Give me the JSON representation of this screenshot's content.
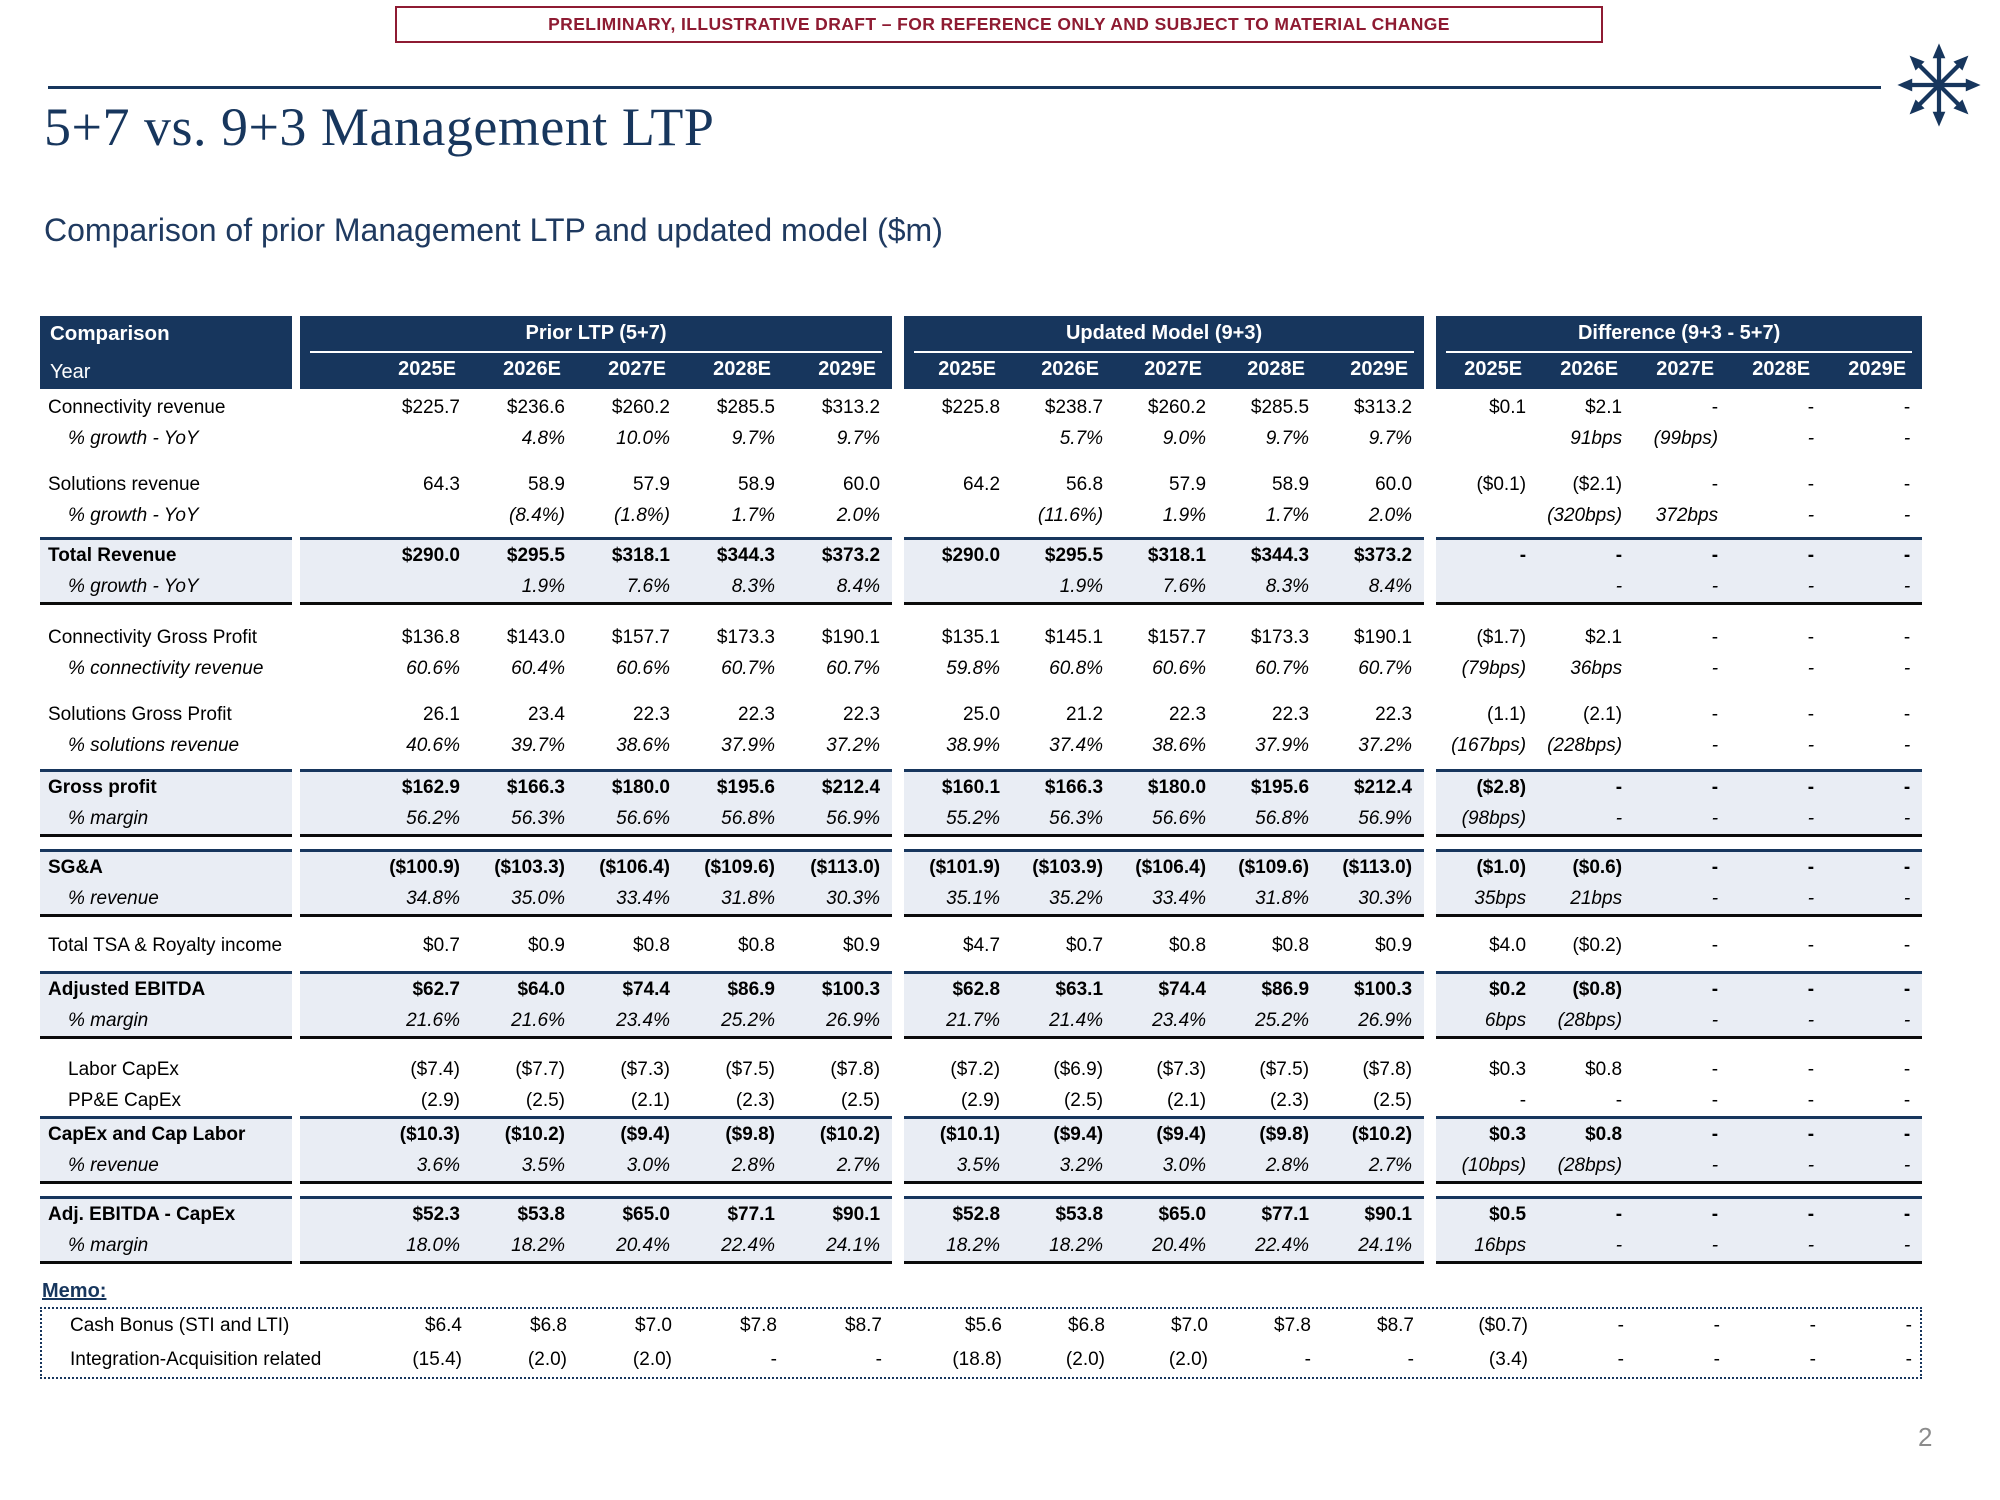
{
  "banner": {
    "text": "PRELIMINARY, ILLUSTRATIVE DRAFT – FOR REFERENCE ONLY AND SUBJECT TO MATERIAL CHANGE"
  },
  "header": {
    "title": "5+7 vs. 9+3 Management LTP",
    "subtitle": "Comparison of prior Management LTP and updated model ($m)"
  },
  "logo": {
    "icon": "arrows-starburst-logo"
  },
  "colors": {
    "navy": "#17365D",
    "maroon": "#8E1B32",
    "row_shade": "#E9EDF4",
    "page_number_gray": "#8C8C8C"
  },
  "page": {
    "number": "2"
  },
  "table": {
    "label_header": {
      "line1": "Comparison",
      "line2": "Year"
    },
    "groups": [
      {
        "key": "prior",
        "title": "Prior LTP (5+7)",
        "years": [
          "2025E",
          "2026E",
          "2027E",
          "2028E",
          "2029E"
        ]
      },
      {
        "key": "updated",
        "title": "Updated Model (9+3)",
        "years": [
          "2025E",
          "2026E",
          "2027E",
          "2028E",
          "2029E"
        ]
      },
      {
        "key": "diff",
        "title": "Difference (9+3 - 5+7)",
        "years": [
          "2025E",
          "2026E",
          "2027E",
          "2028E",
          "2029E"
        ]
      }
    ],
    "sections": [
      {
        "style": "plain",
        "rows": [
          {
            "label": "Connectivity revenue",
            "kind": "item",
            "prior": [
              "$225.7",
              "$236.6",
              "$260.2",
              "$285.5",
              "$313.2"
            ],
            "updated": [
              "$225.8",
              "$238.7",
              "$260.2",
              "$285.5",
              "$313.2"
            ],
            "diff": [
              "$0.1",
              "$2.1",
              "-",
              "-",
              "-"
            ]
          },
          {
            "label": "% growth - YoY",
            "kind": "sub",
            "prior": [
              "",
              "4.8%",
              "10.0%",
              "9.7%",
              "9.7%"
            ],
            "updated": [
              "",
              "5.7%",
              "9.0%",
              "9.7%",
              "9.7%"
            ],
            "diff": [
              "",
              "91bps",
              "(99bps)",
              "-",
              "-"
            ]
          },
          {
            "label": "Solutions revenue",
            "kind": "item",
            "prior": [
              "64.3",
              "58.9",
              "57.9",
              "58.9",
              "60.0"
            ],
            "updated": [
              "64.2",
              "56.8",
              "57.9",
              "58.9",
              "60.0"
            ],
            "diff": [
              "($0.1)",
              "($2.1)",
              "-",
              "-",
              "-"
            ]
          },
          {
            "label": "% growth - YoY",
            "kind": "sub",
            "prior": [
              "",
              "(8.4%)",
              "(1.8%)",
              "1.7%",
              "2.0%"
            ],
            "updated": [
              "",
              "(11.6%)",
              "1.9%",
              "1.7%",
              "2.0%"
            ],
            "diff": [
              "",
              "(320bps)",
              "372bps",
              "-",
              "-"
            ]
          }
        ]
      },
      {
        "style": "total",
        "rows": [
          {
            "label": "Total Revenue",
            "kind": "total",
            "prior": [
              "$290.0",
              "$295.5",
              "$318.1",
              "$344.3",
              "$373.2"
            ],
            "updated": [
              "$290.0",
              "$295.5",
              "$318.1",
              "$344.3",
              "$373.2"
            ],
            "diff": [
              "-",
              "-",
              "-",
              "-",
              "-"
            ]
          },
          {
            "label": "% growth - YoY",
            "kind": "sub",
            "prior": [
              "",
              "1.9%",
              "7.6%",
              "8.3%",
              "8.4%"
            ],
            "updated": [
              "",
              "1.9%",
              "7.6%",
              "8.3%",
              "8.4%"
            ],
            "diff": [
              "",
              "-",
              "-",
              "-",
              "-"
            ]
          }
        ]
      },
      {
        "style": "plain",
        "rows": [
          {
            "label": "Connectivity Gross Profit",
            "kind": "item",
            "prior": [
              "$136.8",
              "$143.0",
              "$157.7",
              "$173.3",
              "$190.1"
            ],
            "updated": [
              "$135.1",
              "$145.1",
              "$157.7",
              "$173.3",
              "$190.1"
            ],
            "diff": [
              "($1.7)",
              "$2.1",
              "-",
              "-",
              "-"
            ]
          },
          {
            "label": "% connectivity revenue",
            "kind": "sub",
            "prior": [
              "60.6%",
              "60.4%",
              "60.6%",
              "60.7%",
              "60.7%"
            ],
            "updated": [
              "59.8%",
              "60.8%",
              "60.6%",
              "60.7%",
              "60.7%"
            ],
            "diff": [
              "(79bps)",
              "36bps",
              "-",
              "-",
              "-"
            ]
          },
          {
            "label": "Solutions Gross Profit",
            "kind": "item",
            "prior": [
              "26.1",
              "23.4",
              "22.3",
              "22.3",
              "22.3"
            ],
            "updated": [
              "25.0",
              "21.2",
              "22.3",
              "22.3",
              "22.3"
            ],
            "diff": [
              "(1.1)",
              "(2.1)",
              "-",
              "-",
              "-"
            ]
          },
          {
            "label": "% solutions revenue",
            "kind": "sub",
            "prior": [
              "40.6%",
              "39.7%",
              "38.6%",
              "37.9%",
              "37.2%"
            ],
            "updated": [
              "38.9%",
              "37.4%",
              "38.6%",
              "37.9%",
              "37.2%"
            ],
            "diff": [
              "(167bps)",
              "(228bps)",
              "-",
              "-",
              "-"
            ]
          }
        ]
      },
      {
        "style": "total",
        "rows": [
          {
            "label": "Gross profit",
            "kind": "total",
            "prior": [
              "$162.9",
              "$166.3",
              "$180.0",
              "$195.6",
              "$212.4"
            ],
            "updated": [
              "$160.1",
              "$166.3",
              "$180.0",
              "$195.6",
              "$212.4"
            ],
            "diff": [
              "($2.8)",
              "-",
              "-",
              "-",
              "-"
            ]
          },
          {
            "label": "% margin",
            "kind": "sub",
            "prior": [
              "56.2%",
              "56.3%",
              "56.6%",
              "56.8%",
              "56.9%"
            ],
            "updated": [
              "55.2%",
              "56.3%",
              "56.6%",
              "56.8%",
              "56.9%"
            ],
            "diff": [
              "(98bps)",
              "-",
              "-",
              "-",
              "-"
            ]
          }
        ]
      },
      {
        "style": "total",
        "rows": [
          {
            "label": "SG&A",
            "kind": "total",
            "prior": [
              "($100.9)",
              "($103.3)",
              "($106.4)",
              "($109.6)",
              "($113.0)"
            ],
            "updated": [
              "($101.9)",
              "($103.9)",
              "($106.4)",
              "($109.6)",
              "($113.0)"
            ],
            "diff": [
              "($1.0)",
              "($0.6)",
              "-",
              "-",
              "-"
            ]
          },
          {
            "label": "% revenue",
            "kind": "sub",
            "prior": [
              "34.8%",
              "35.0%",
              "33.4%",
              "31.8%",
              "30.3%"
            ],
            "updated": [
              "35.1%",
              "35.2%",
              "33.4%",
              "31.8%",
              "30.3%"
            ],
            "diff": [
              "35bps",
              "21bps",
              "-",
              "-",
              "-"
            ]
          }
        ]
      },
      {
        "style": "plain",
        "rows": [
          {
            "label": "Total TSA & Royalty income",
            "kind": "item",
            "prior": [
              "$0.7",
              "$0.9",
              "$0.8",
              "$0.8",
              "$0.9"
            ],
            "updated": [
              "$4.7",
              "$0.7",
              "$0.8",
              "$0.8",
              "$0.9"
            ],
            "diff": [
              "$4.0",
              "($0.2)",
              "-",
              "-",
              "-"
            ]
          }
        ]
      },
      {
        "style": "total",
        "rows": [
          {
            "label": "Adjusted EBITDA",
            "kind": "total",
            "prior": [
              "$62.7",
              "$64.0",
              "$74.4",
              "$86.9",
              "$100.3"
            ],
            "updated": [
              "$62.8",
              "$63.1",
              "$74.4",
              "$86.9",
              "$100.3"
            ],
            "diff": [
              "$0.2",
              "($0.8)",
              "-",
              "-",
              "-"
            ]
          },
          {
            "label": "% margin",
            "kind": "sub",
            "prior": [
              "21.6%",
              "21.6%",
              "23.4%",
              "25.2%",
              "26.9%"
            ],
            "updated": [
              "21.7%",
              "21.4%",
              "23.4%",
              "25.2%",
              "26.9%"
            ],
            "diff": [
              "6bps",
              "(28bps)",
              "-",
              "-",
              "-"
            ]
          }
        ]
      },
      {
        "style": "plain",
        "rows": [
          {
            "label": "Labor CapEx",
            "kind": "item_indent",
            "prior": [
              "($7.4)",
              "($7.7)",
              "($7.3)",
              "($7.5)",
              "($7.8)"
            ],
            "updated": [
              "($7.2)",
              "($6.9)",
              "($7.3)",
              "($7.5)",
              "($7.8)"
            ],
            "diff": [
              "$0.3",
              "$0.8",
              "-",
              "-",
              "-"
            ]
          },
          {
            "label": "PP&E CapEx",
            "kind": "item_indent",
            "prior": [
              "(2.9)",
              "(2.5)",
              "(2.1)",
              "(2.3)",
              "(2.5)"
            ],
            "updated": [
              "(2.9)",
              "(2.5)",
              "(2.1)",
              "(2.3)",
              "(2.5)"
            ],
            "diff": [
              "-",
              "-",
              "-",
              "-",
              "-"
            ]
          }
        ]
      },
      {
        "style": "total",
        "rows": [
          {
            "label": "CapEx and Cap Labor",
            "kind": "total",
            "prior": [
              "($10.3)",
              "($10.2)",
              "($9.4)",
              "($9.8)",
              "($10.2)"
            ],
            "updated": [
              "($10.1)",
              "($9.4)",
              "($9.4)",
              "($9.8)",
              "($10.2)"
            ],
            "diff": [
              "$0.3",
              "$0.8",
              "-",
              "-",
              "-"
            ]
          },
          {
            "label": "% revenue",
            "kind": "sub",
            "prior": [
              "3.6%",
              "3.5%",
              "3.0%",
              "2.8%",
              "2.7%"
            ],
            "updated": [
              "3.5%",
              "3.2%",
              "3.0%",
              "2.8%",
              "2.7%"
            ],
            "diff": [
              "(10bps)",
              "(28bps)",
              "-",
              "-",
              "-"
            ]
          }
        ]
      },
      {
        "style": "total",
        "rows": [
          {
            "label": "Adj. EBITDA - CapEx",
            "kind": "total",
            "prior": [
              "$52.3",
              "$53.8",
              "$65.0",
              "$77.1",
              "$90.1"
            ],
            "updated": [
              "$52.8",
              "$53.8",
              "$65.0",
              "$77.1",
              "$90.1"
            ],
            "diff": [
              "$0.5",
              "-",
              "-",
              "-",
              "-"
            ]
          },
          {
            "label": "% margin",
            "kind": "sub",
            "prior": [
              "18.0%",
              "18.2%",
              "20.4%",
              "22.4%",
              "24.1%"
            ],
            "updated": [
              "18.2%",
              "18.2%",
              "20.4%",
              "22.4%",
              "24.1%"
            ],
            "diff": [
              "16bps",
              "-",
              "-",
              "-",
              "-"
            ]
          }
        ]
      }
    ],
    "memo": {
      "title": "Memo:",
      "rows": [
        {
          "label": "Cash Bonus (STI and LTI)",
          "prior": [
            "$6.4",
            "$6.8",
            "$7.0",
            "$7.8",
            "$8.7"
          ],
          "updated": [
            "$5.6",
            "$6.8",
            "$7.0",
            "$7.8",
            "$8.7"
          ],
          "diff": [
            "($0.7)",
            "-",
            "-",
            "-",
            "-"
          ]
        },
        {
          "label": "Integration-Acquisition related",
          "prior": [
            "(15.4)",
            "(2.0)",
            "(2.0)",
            "-",
            "-"
          ],
          "updated": [
            "(18.8)",
            "(2.0)",
            "(2.0)",
            "-",
            "-"
          ],
          "diff": [
            "(3.4)",
            "-",
            "-",
            "-",
            "-"
          ]
        }
      ]
    }
  }
}
